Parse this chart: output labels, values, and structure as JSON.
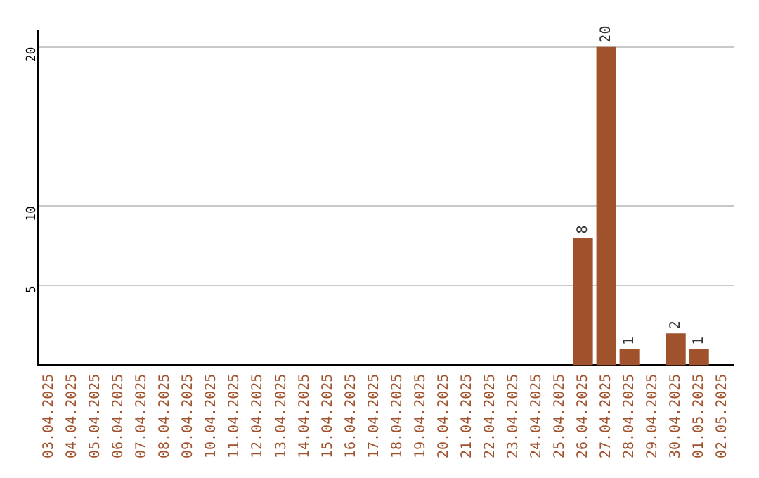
{
  "chart_data": {
    "type": "bar",
    "categories": [
      "03.04.2025",
      "04.04.2025",
      "05.04.2025",
      "06.04.2025",
      "07.04.2025",
      "08.04.2025",
      "09.04.2025",
      "10.04.2025",
      "11.04.2025",
      "12.04.2025",
      "13.04.2025",
      "14.04.2025",
      "15.04.2025",
      "16.04.2025",
      "17.04.2025",
      "18.04.2025",
      "19.04.2025",
      "20.04.2025",
      "21.04.2025",
      "22.04.2025",
      "23.04.2025",
      "24.04.2025",
      "25.04.2025",
      "26.04.2025",
      "27.04.2025",
      "28.04.2025",
      "29.04.2025",
      "30.04.2025",
      "01.05.2025",
      "02.05.2025"
    ],
    "values": [
      0,
      0,
      0,
      0,
      0,
      0,
      0,
      0,
      0,
      0,
      0,
      0,
      0,
      0,
      0,
      0,
      0,
      0,
      0,
      0,
      0,
      0,
      0,
      8,
      20,
      1,
      0,
      2,
      1,
      0
    ],
    "value_labels": [
      null,
      null,
      null,
      null,
      null,
      null,
      null,
      null,
      null,
      null,
      null,
      null,
      null,
      null,
      null,
      null,
      null,
      null,
      null,
      null,
      null,
      null,
      null,
      "8",
      "20",
      "1",
      null,
      "2",
      "1",
      null
    ],
    "color": "#a0522d",
    "ylim": [
      0,
      21
    ],
    "yticks": [
      5,
      10,
      20
    ],
    "grid": "y",
    "legend": false
  }
}
